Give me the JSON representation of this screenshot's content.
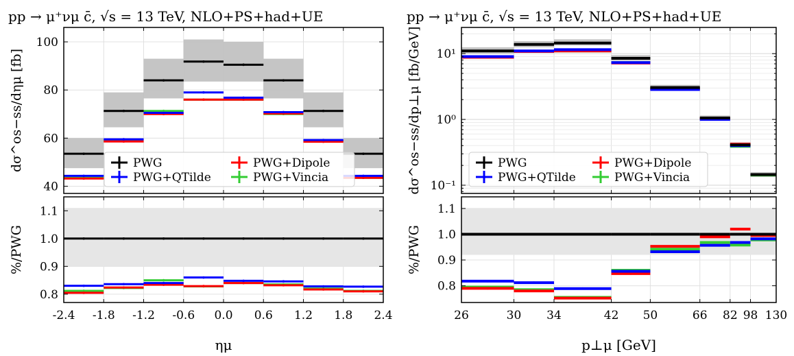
{
  "colors": {
    "PWG": "#000000",
    "PWG+QTilde": "#0000ff",
    "PWG+Dipole": "#ff0000",
    "PWG+Vincia": "#33cc33",
    "band": "#bfbfbf",
    "ratio_band": "#e6e6e6",
    "grid": "#e0e0e0"
  },
  "legend_labels": [
    "PWG",
    "PWG+QTilde",
    "PWG+Dipole",
    "PWG+Vincia"
  ],
  "chart_data": [
    {
      "type": "histogram",
      "title": "pp → μ⁺νμ c̄, √s = 13 TeV, NLO+PS+had+UE",
      "xlabel": "ημ",
      "ylabel": "dσ^os−ss/dημ [fb]",
      "ratio_ylabel": "%/PWG",
      "xscale": "linear",
      "yscale": "linear",
      "xlim": [
        -2.4,
        2.4
      ],
      "ylim": [
        37,
        106
      ],
      "ratio_ylim": [
        0.77,
        1.15
      ],
      "xticks": [
        -2.4,
        -1.8,
        -1.2,
        -0.6,
        0.0,
        0.6,
        1.2,
        1.8,
        2.4
      ],
      "xtick_labels": [
        "-2.4",
        "-1.8",
        "-1.2",
        "-0.6",
        "0.0",
        "0.6",
        "1.2",
        "1.8",
        "2.4"
      ],
      "yticks": [
        40,
        60,
        80,
        100
      ],
      "ytick_labels": [
        "40",
        "60",
        "80",
        "100"
      ],
      "ratio_yticks": [
        0.8,
        0.9,
        1.0,
        1.1
      ],
      "ratio_ytick_labels": [
        "0.8",
        "0.9",
        "1.0",
        "1.1"
      ],
      "grid": true,
      "legend_position": "bottom-center",
      "bin_edges": [
        -2.4,
        -1.8,
        -1.2,
        -0.6,
        0.0,
        0.6,
        1.2,
        1.8,
        2.4
      ],
      "series": [
        {
          "name": "PWG",
          "values": [
            53.5,
            71.3,
            84.0,
            91.8,
            90.5,
            84.0,
            71.3,
            53.5
          ]
        },
        {
          "name": "PWG+QTilde",
          "values": [
            44.3,
            59.5,
            70.5,
            79.0,
            76.8,
            70.8,
            59.2,
            44.3
          ]
        },
        {
          "name": "PWG+Dipole",
          "values": [
            43.2,
            58.6,
            70.0,
            76.0,
            76.0,
            70.2,
            58.5,
            43.5
          ]
        },
        {
          "name": "PWG+Vincia",
          "values": [
            43.5,
            58.8,
            71.3,
            76.0,
            76.0,
            70.0,
            58.8,
            43.5
          ]
        }
      ],
      "uncertainty_band": {
        "low": [
          47.5,
          64.5,
          76.5,
          83.5,
          83.5,
          76.5,
          64.5,
          47.5
        ],
        "high": [
          60.0,
          79.0,
          93.0,
          101.0,
          100.0,
          93.0,
          79.0,
          60.0
        ]
      },
      "ratio_series": [
        {
          "name": "PWG",
          "values": [
            1.0,
            1.0,
            1.0,
            1.0,
            1.0,
            1.0,
            1.0,
            1.0
          ]
        },
        {
          "name": "PWG+QTilde",
          "values": [
            0.83,
            0.836,
            0.84,
            0.86,
            0.848,
            0.846,
            0.828,
            0.827
          ]
        },
        {
          "name": "PWG+Dipole",
          "values": [
            0.805,
            0.824,
            0.834,
            0.829,
            0.84,
            0.832,
            0.817,
            0.81
          ]
        },
        {
          "name": "PWG+Vincia",
          "values": [
            0.812,
            0.822,
            0.85,
            0.828,
            0.84,
            0.835,
            0.82,
            0.812
          ]
        }
      ],
      "ratio_band": {
        "low": [
          0.9,
          0.9,
          0.9,
          0.9,
          0.9,
          0.9,
          0.9,
          0.9
        ],
        "high": [
          1.11,
          1.11,
          1.11,
          1.11,
          1.11,
          1.11,
          1.11,
          1.11
        ]
      }
    },
    {
      "type": "histogram",
      "title": "pp → μ⁺νμ c̄, √s = 13 TeV, NLO+PS+had+UE",
      "xlabel": "p⊥μ [GeV]",
      "ylabel": "dσ^os−ss/dp⊥μ [fb/GeV]",
      "ratio_ylabel": "%/PWG",
      "xscale": "reciprocal",
      "yscale": "log",
      "xlim": [
        26,
        130
      ],
      "ylim": [
        0.075,
        25
      ],
      "ratio_ylim": [
        0.735,
        1.145
      ],
      "xticks": [
        26,
        30,
        34,
        42,
        50,
        66,
        82,
        98,
        130
      ],
      "xtick_labels": [
        "26",
        "30",
        "34",
        "42",
        "50",
        "66",
        "82",
        "98",
        "130"
      ],
      "yticks": [
        0.1,
        1,
        10
      ],
      "ytick_labels": [
        "10⁻¹",
        "10⁰",
        "10¹"
      ],
      "ratio_yticks": [
        0.8,
        0.9,
        1.0,
        1.1
      ],
      "ratio_ytick_labels": [
        "0.8",
        "0.9",
        "1.0",
        "1.1"
      ],
      "grid": true,
      "legend_position": "bottom-center",
      "bin_edges": [
        26,
        30,
        34,
        42,
        50,
        66,
        82,
        98,
        130
      ],
      "series": [
        {
          "name": "PWG",
          "values": [
            11.0,
            13.8,
            14.5,
            8.5,
            3.05,
            1.05,
            0.41,
            0.145
          ]
        },
        {
          "name": "PWG+QTilde",
          "values": [
            9.0,
            11.0,
            11.5,
            7.3,
            2.85,
            1.0,
            0.4,
            0.145
          ]
        },
        {
          "name": "PWG+Dipole",
          "values": [
            8.8,
            10.8,
            11.0,
            7.2,
            2.9,
            1.03,
            0.42,
            0.145
          ]
        },
        {
          "name": "PWG+Vincia",
          "values": [
            8.8,
            10.8,
            11.0,
            7.3,
            2.95,
            1.02,
            0.39,
            0.143
          ]
        }
      ],
      "uncertainty_band": {
        "low": [
          10.0,
          12.5,
          13.3,
          7.8,
          2.85,
          0.97,
          0.38,
          0.133
        ],
        "high": [
          12.5,
          15.5,
          16.5,
          9.5,
          3.35,
          1.15,
          0.45,
          0.158
        ]
      },
      "ratio_series": [
        {
          "name": "PWG",
          "values": [
            1.0,
            1.0,
            1.0,
            1.0,
            1.0,
            1.0,
            1.0,
            1.0
          ]
        },
        {
          "name": "PWG+QTilde",
          "values": [
            0.818,
            0.812,
            0.789,
            0.856,
            0.932,
            0.957,
            0.968,
            0.982
          ]
        },
        {
          "name": "PWG+Dipole",
          "values": [
            0.79,
            0.78,
            0.752,
            0.847,
            0.953,
            0.99,
            1.02,
            0.995
          ]
        },
        {
          "name": "PWG+Vincia",
          "values": [
            0.795,
            0.785,
            0.755,
            0.86,
            0.942,
            0.968,
            0.958,
            0.978
          ]
        }
      ],
      "ratio_band": {
        "low": [
          0.92,
          0.92,
          0.92,
          0.92,
          0.92,
          0.92,
          0.92,
          0.92
        ],
        "high": [
          1.1,
          1.1,
          1.1,
          1.1,
          1.1,
          1.1,
          1.1,
          1.1
        ]
      }
    }
  ]
}
